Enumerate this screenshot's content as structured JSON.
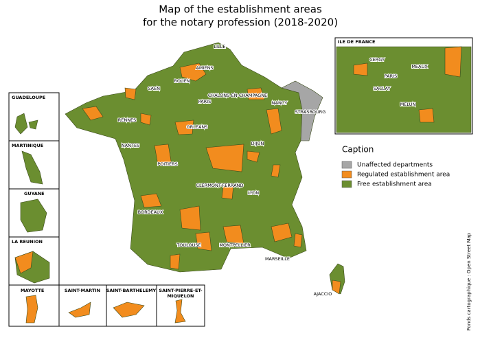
{
  "title_lines": [
    "Map of the establishment areas",
    "for the notary profession (2018-2020)"
  ],
  "cities": [
    "LILLE",
    "AMIENS",
    "ROUEN",
    "CAEN",
    "CHALONS-EN-CHAMPAGNE",
    "PARIS",
    "NANCY",
    "STRASBOURG",
    "RENNES",
    "ORLEANS",
    "NANTES",
    "DIJON",
    "POITIERS",
    "CLERMONT-FERRAND",
    "LYON",
    "BORDEAUX",
    "TOULOUSE",
    "MONTPELLIER",
    "MARSEILLE",
    "AJACCIO"
  ],
  "idf": {
    "title": "ILE DE FRANCE",
    "cities": [
      "CERGY",
      "MEAUX",
      "PARIS",
      "SACLAY",
      "MELUN"
    ]
  },
  "overseas": [
    "GUADELOUPE",
    "MARTINIQUE",
    "GUYANE",
    "LA REUNION",
    "MAYOTTE",
    "SAINT-MARTIN",
    "SAINT-BARTHELEMY",
    [
      "SAINT-PIERRE-ET-",
      "MIQUELON"
    ]
  ],
  "legend": {
    "title": "Caption",
    "items": [
      {
        "label": "Unaffected departments",
        "color": "#a6a6a6"
      },
      {
        "label": "Regulated establishment area",
        "color": "#f28c1e"
      },
      {
        "label": "Free establishment area",
        "color": "#6b8e30"
      }
    ]
  },
  "source": "Fonds cartographique : Open Street Map"
}
